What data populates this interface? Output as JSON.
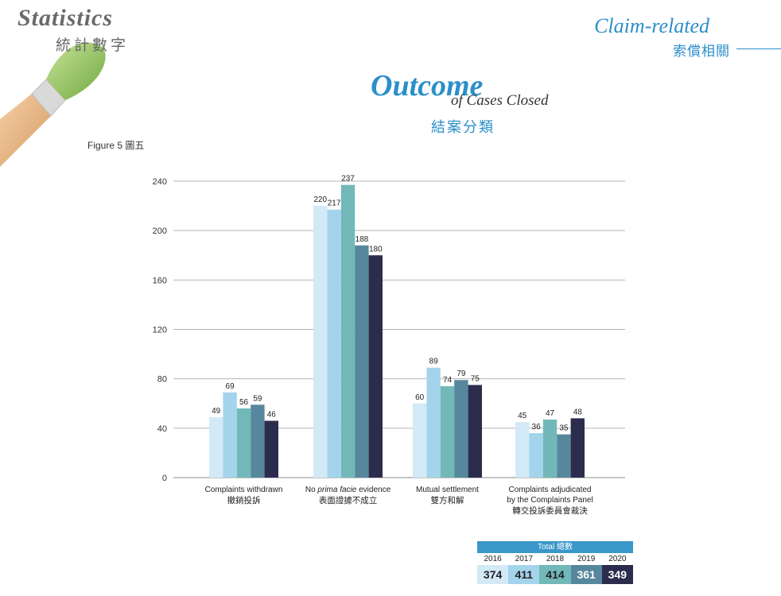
{
  "header": {
    "section_en": "Statistics",
    "section_zh": "統計數字",
    "category_en": "Claim-related",
    "category_zh": "索償相關"
  },
  "title": {
    "main": "Outcome",
    "rest": "of Cases Closed",
    "zh": "結案分類"
  },
  "figure_label": "Figure 5 圖五",
  "colors": {
    "accent": "#2b8fc9",
    "series": [
      "#d3e9f6",
      "#a4d4ec",
      "#72b8b9",
      "#57879c",
      "#2c2d4d"
    ]
  },
  "chart_data": {
    "type": "bar",
    "categories": [
      {
        "en": "Complaints withdrawn",
        "zh": "撤銷投訴"
      },
      {
        "en_pre": "No ",
        "en_italic": "prima facie",
        "en_post": " evidence",
        "zh": "表面證據不成立"
      },
      {
        "en": "Mutual settlement",
        "zh": "雙方和解"
      },
      {
        "en": "Complaints adjudicated",
        "en2": "by the Complaints Panel",
        "zh": "轉交投訴委員會裁決"
      }
    ],
    "series": [
      {
        "name": "2016",
        "values": [
          49,
          220,
          60,
          45
        ]
      },
      {
        "name": "2017",
        "values": [
          69,
          217,
          89,
          36
        ]
      },
      {
        "name": "2018",
        "values": [
          56,
          237,
          74,
          47
        ]
      },
      {
        "name": "2019",
        "values": [
          59,
          188,
          79,
          35
        ]
      },
      {
        "name": "2020",
        "values": [
          46,
          180,
          75,
          48
        ]
      }
    ],
    "yticks": [
      0,
      40,
      80,
      120,
      160,
      200,
      240
    ],
    "ylim": [
      0,
      240
    ],
    "grid": true
  },
  "totals": {
    "header": "Total 總數",
    "years": [
      "2016",
      "2017",
      "2018",
      "2019",
      "2020"
    ],
    "values": [
      "374",
      "411",
      "414",
      "361",
      "349"
    ]
  }
}
